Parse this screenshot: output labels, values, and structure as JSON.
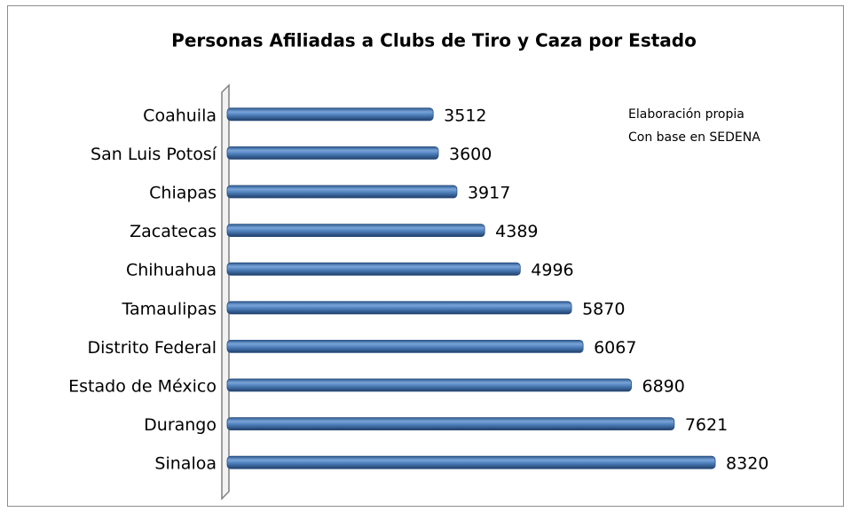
{
  "chart_data": {
    "type": "bar",
    "orientation": "horizontal",
    "title": "Personas Afiliadas a Clubs de Tiro y Caza por Estado",
    "annotation": [
      "Elaboración propia",
      "Con base en SEDENA"
    ],
    "categories": [
      "Coahuila",
      "San Luis Potosí",
      "Chiapas",
      "Zacatecas",
      "Chihuahua",
      "Tamaulipas",
      "Distrito Federal",
      "Estado de México",
      "Durango",
      "Sinaloa"
    ],
    "values": [
      3512,
      3600,
      3917,
      4389,
      4996,
      5870,
      6067,
      6890,
      7621,
      8320
    ],
    "color": "#4f81bd",
    "xlim": [
      0,
      9000
    ]
  }
}
